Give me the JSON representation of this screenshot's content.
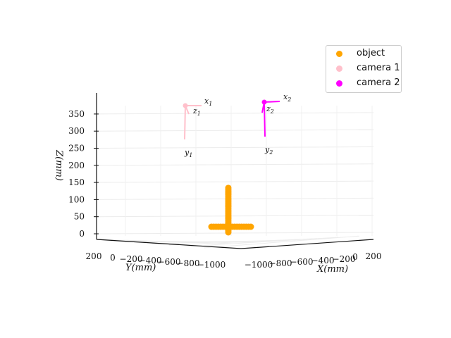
{
  "chart_data": {
    "type": "scatter",
    "title": "",
    "xlabel": "X(mm)",
    "ylabel": "Y(mm)",
    "zlabel": "Z(mm)",
    "x_ticks": [
      "−1000",
      "−800",
      "−600",
      "−400",
      "−200",
      "0",
      "200"
    ],
    "y_ticks": [
      "200",
      "0",
      "−200",
      "−400",
      "−600",
      "−800",
      "−1000"
    ],
    "z_ticks": [
      "0",
      "50",
      "100",
      "150",
      "200",
      "250",
      "300",
      "350"
    ],
    "zlim": [
      0,
      380
    ],
    "grid": true,
    "legend_position": "top-right",
    "series": [
      {
        "name": "object",
        "color": "#ffa500",
        "marker": "dot"
      },
      {
        "name": "camera 1",
        "color": "#ffc0cb",
        "marker": "dot"
      },
      {
        "name": "camera 2",
        "color": "#ff00ff",
        "marker": "dot"
      }
    ],
    "object_vertical_z": [
      10,
      20,
      30,
      40,
      50,
      60,
      70,
      80,
      90,
      100,
      110,
      120,
      130
    ],
    "object_base_points": 18,
    "cameras": [
      {
        "name": "camera 1",
        "z": 362,
        "labels": [
          "x",
          "y",
          "z"
        ],
        "subscript": "1"
      },
      {
        "name": "camera 2",
        "z": 367,
        "labels": [
          "x",
          "y",
          "z"
        ],
        "subscript": "2"
      }
    ]
  }
}
